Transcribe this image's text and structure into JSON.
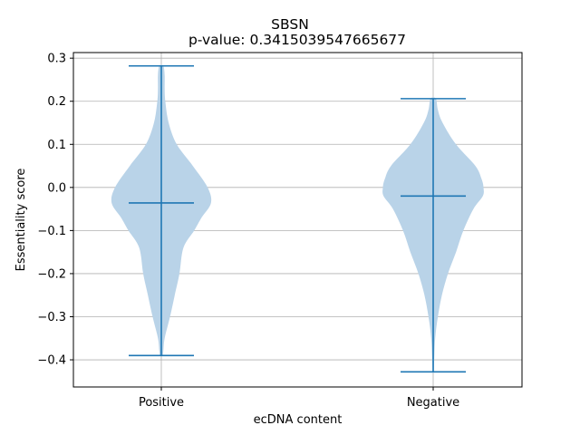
{
  "chart_data": {
    "type": "violin",
    "title": "SBSN",
    "subtitle": "p-value: 0.3415039547665677",
    "xlabel": "ecDNA content",
    "ylabel": "Essentiality score",
    "categories": [
      "Positive",
      "Negative"
    ],
    "ylim": [
      -0.463,
      0.313
    ],
    "yticks": [
      0.3,
      0.2,
      0.1,
      0.0,
      -0.1,
      -0.2,
      -0.3,
      -0.4
    ],
    "ytick_labels": [
      "0.3",
      "0.2",
      "0.1",
      "0.0",
      "−0.1",
      "−0.2",
      "−0.3",
      "−0.4"
    ],
    "grid": true,
    "colors": {
      "body": "#b9d3e8",
      "lines": "#1f77b4",
      "grid": "#b0b0b0",
      "axis": "#000000"
    },
    "violins": [
      {
        "category": "Positive",
        "min": -0.39,
        "median": -0.036,
        "max": 0.282,
        "density": [
          [
            0.282,
            0.03
          ],
          [
            0.26,
            0.05
          ],
          [
            0.23,
            0.05
          ],
          [
            0.2,
            0.06
          ],
          [
            0.15,
            0.11
          ],
          [
            0.1,
            0.23
          ],
          [
            0.05,
            0.47
          ],
          [
            0.0,
            0.69
          ],
          [
            -0.036,
            0.74
          ],
          [
            -0.07,
            0.6
          ],
          [
            -0.1,
            0.49
          ],
          [
            -0.14,
            0.33
          ],
          [
            -0.2,
            0.27
          ],
          [
            -0.25,
            0.2
          ],
          [
            -0.3,
            0.13
          ],
          [
            -0.35,
            0.05
          ],
          [
            -0.38,
            0.03
          ],
          [
            -0.39,
            0.02
          ]
        ]
      },
      {
        "category": "Negative",
        "min": -0.428,
        "median": -0.02,
        "max": 0.206,
        "density": [
          [
            0.206,
            0.04
          ],
          [
            0.18,
            0.07
          ],
          [
            0.15,
            0.14
          ],
          [
            0.1,
            0.34
          ],
          [
            0.05,
            0.63
          ],
          [
            0.02,
            0.72
          ],
          [
            0.0,
            0.75
          ],
          [
            -0.02,
            0.74
          ],
          [
            -0.05,
            0.6
          ],
          [
            -0.1,
            0.45
          ],
          [
            -0.15,
            0.34
          ],
          [
            -0.2,
            0.22
          ],
          [
            -0.25,
            0.13
          ],
          [
            -0.3,
            0.07
          ],
          [
            -0.35,
            0.03
          ],
          [
            -0.4,
            0.015
          ],
          [
            -0.428,
            0.008
          ]
        ]
      }
    ]
  }
}
